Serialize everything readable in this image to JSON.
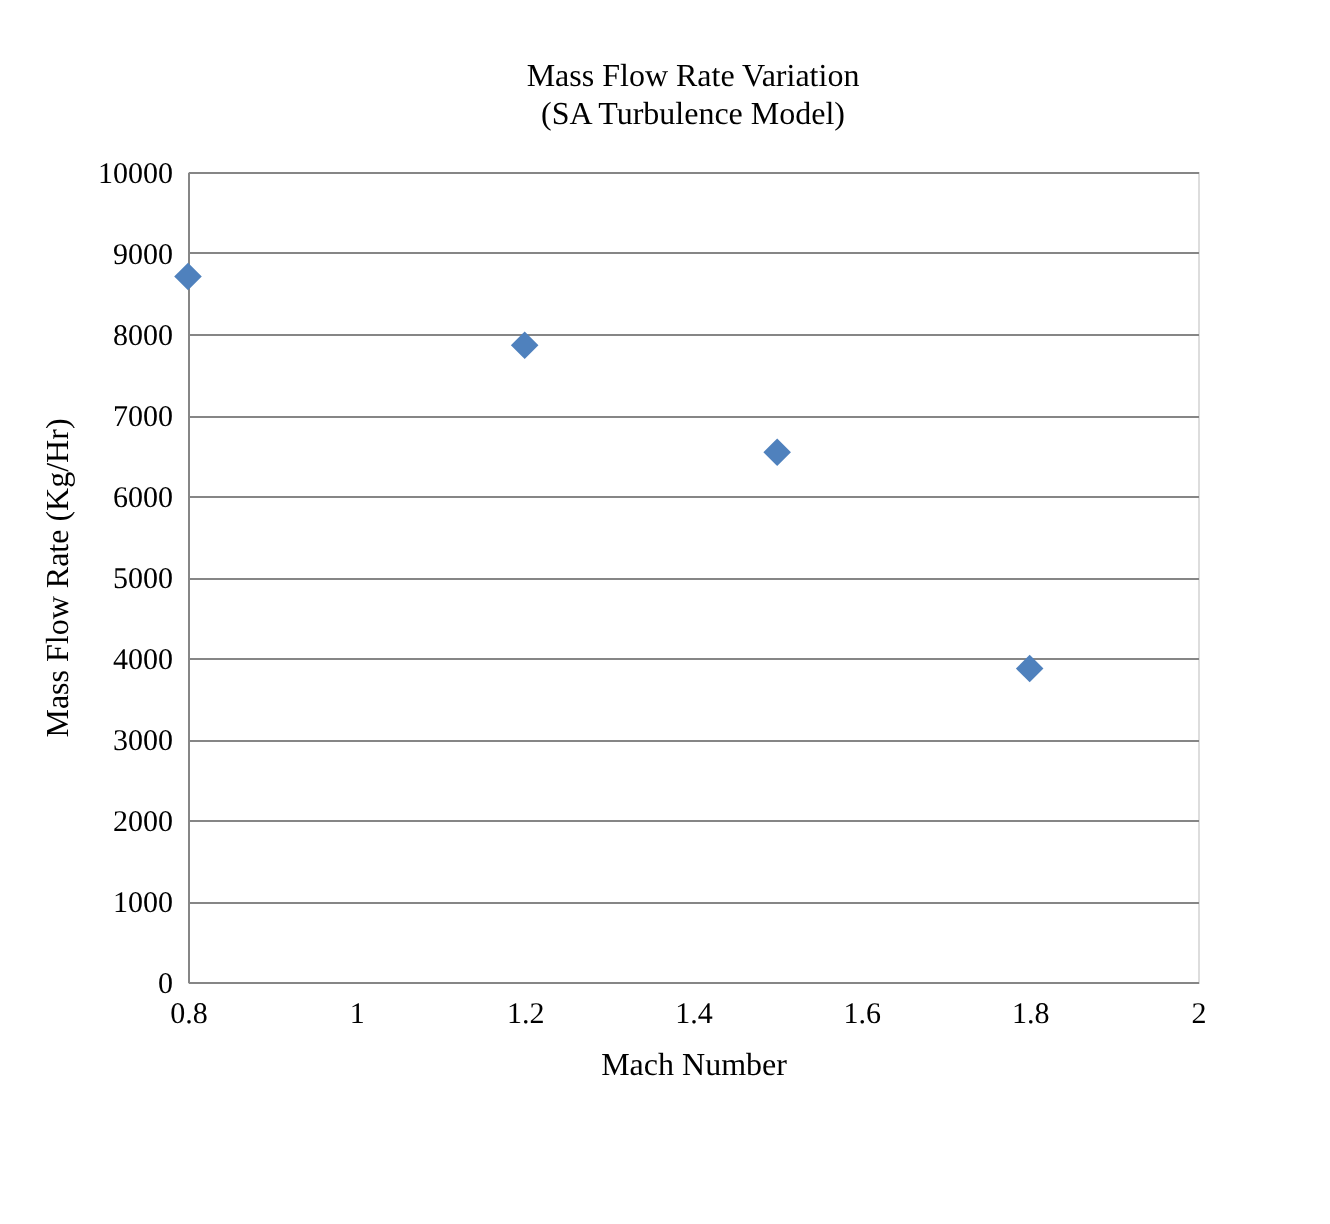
{
  "chart_data": {
    "type": "scatter",
    "title": "Mass Flow Rate Variation",
    "subtitle": "(SA Turbulence Model)",
    "xlabel": "Mach Number",
    "ylabel": "Mass Flow Rate (Kg/Hr)",
    "x": [
      0.8,
      1.2,
      1.5,
      1.8
    ],
    "series": [
      {
        "color": "#4f81bd",
        "values": [
          8710,
          7860,
          6540,
          3870
        ]
      }
    ],
    "xlim": [
      0.8,
      2
    ],
    "xticks": [
      0.8,
      1,
      1.2,
      1.4,
      1.6,
      1.8,
      2
    ],
    "ylim": [
      0,
      10000
    ],
    "yticks": [
      0,
      1000,
      2000,
      3000,
      4000,
      5000,
      6000,
      7000,
      8000,
      9000,
      10000
    ],
    "grid": "y",
    "marker": "diamond",
    "legend": false
  }
}
